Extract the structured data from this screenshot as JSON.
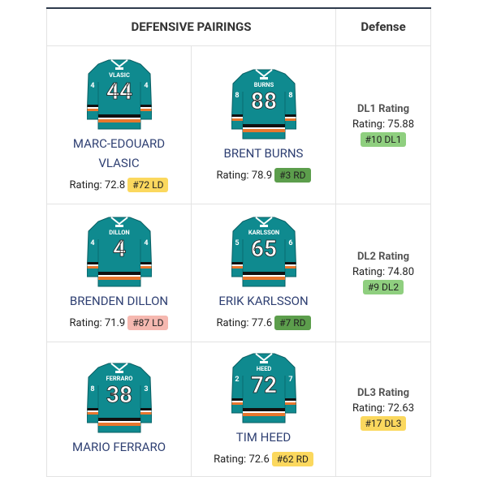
{
  "header": {
    "pairings": "DEFENSIVE PAIRINGS",
    "defense": "Defense"
  },
  "rows": [
    {
      "players": [
        {
          "jersey_name": "VLASIC",
          "jersey_number": "44",
          "sleeves": [
            "4",
            "4"
          ],
          "name": "MARC-EDOUARD VLASIC",
          "rating_label": "Rating:",
          "rating": "72.8",
          "rank": "#72 LD",
          "rank_color": "#fbd85e"
        },
        {
          "jersey_name": "BURNS",
          "jersey_number": "88",
          "sleeves": [
            "8",
            "8"
          ],
          "name": "BRENT BURNS",
          "rating_label": "Rating:",
          "rating": "78.9",
          "rank": "#3 RD",
          "rank_color": "#5c9e4c"
        }
      ],
      "line": {
        "title": "DL1 Rating",
        "rating_label": "Rating:",
        "rating": "75.88",
        "rank": "#10 DL1",
        "rank_color": "#8fcf7f"
      }
    },
    {
      "players": [
        {
          "jersey_name": "DILLON",
          "jersey_number": "4",
          "sleeves": [
            "4",
            "4"
          ],
          "name": "BRENDEN DILLON",
          "rating_label": "Rating:",
          "rating": "71.9",
          "rank": "#87 LD",
          "rank_color": "#f6b8b0"
        },
        {
          "jersey_name": "KARLSSON",
          "jersey_number": "65",
          "sleeves": [
            "5",
            "6"
          ],
          "name": "ERIK KARLSSON",
          "rating_label": "Rating:",
          "rating": "77.6",
          "rank": "#7 RD",
          "rank_color": "#5c9e4c"
        }
      ],
      "line": {
        "title": "DL2 Rating",
        "rating_label": "Rating:",
        "rating": "74.80",
        "rank": "#9 DL2",
        "rank_color": "#8fcf7f"
      }
    },
    {
      "players": [
        {
          "jersey_name": "FERRARO",
          "jersey_number": "38",
          "sleeves": [
            "8",
            "3"
          ],
          "name": "MARIO FERRARO"
        },
        {
          "jersey_name": "HEED",
          "jersey_number": "72",
          "sleeves": [
            "2",
            "7"
          ],
          "name": "TIM HEED",
          "rating_label": "Rating:",
          "rating": "72.6",
          "rank": "#62 RD",
          "rank_color": "#fbd85e"
        }
      ],
      "line": {
        "title": "DL3 Rating",
        "rating_label": "Rating:",
        "rating": "72.63",
        "rank": "#17 DL3",
        "rank_color": "#fbd85e"
      }
    }
  ]
}
